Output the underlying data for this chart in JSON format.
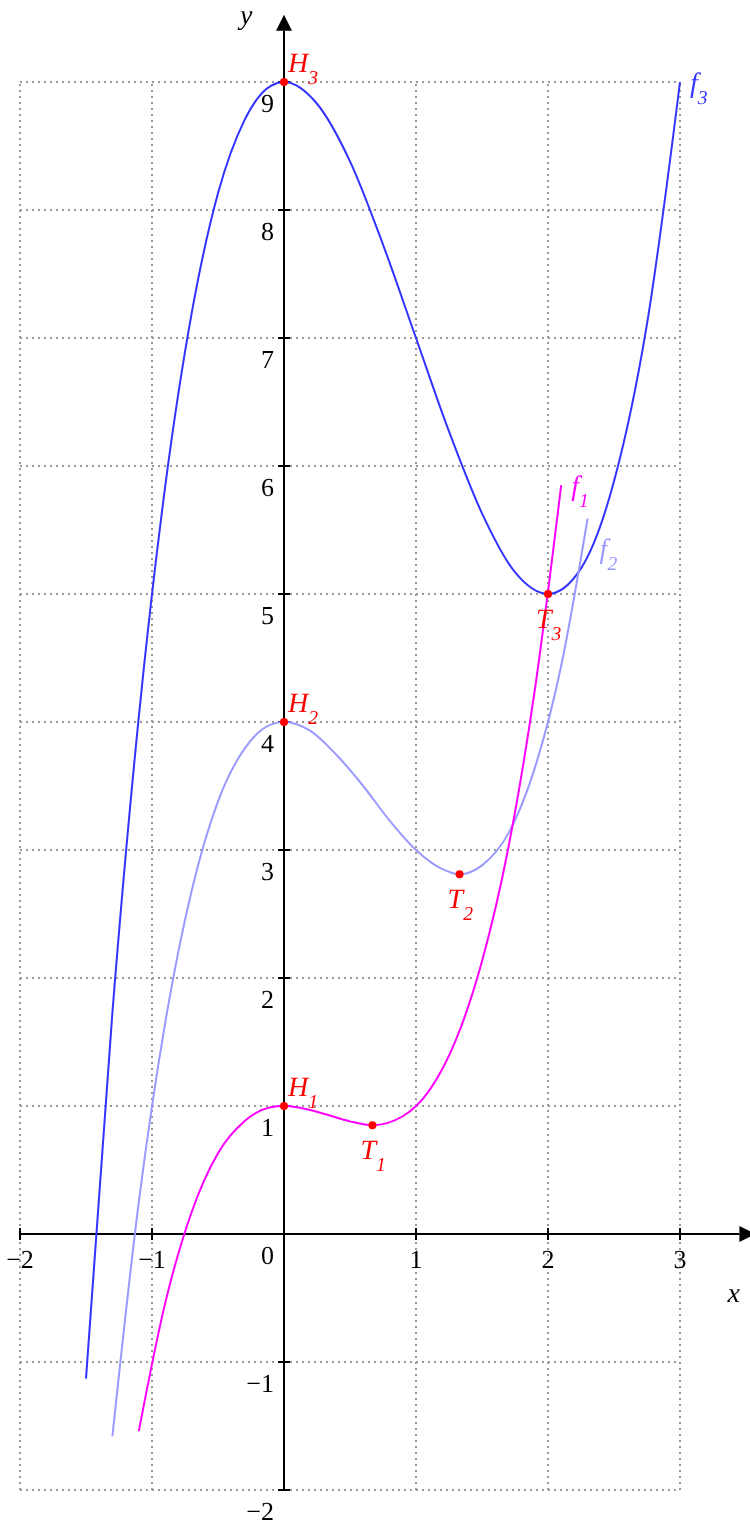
{
  "chart_data": {
    "type": "line",
    "xlabel": "x",
    "ylabel": "y",
    "xlim": [
      -2,
      3.45
    ],
    "ylim": [
      -2,
      9.4
    ],
    "xticks": [
      {
        "value": -2,
        "label": "−2"
      },
      {
        "value": -1,
        "label": "−1"
      },
      1,
      2,
      3
    ],
    "yticks": [
      {
        "value": -2,
        "label": "−2"
      },
      {
        "value": -1,
        "label": "−1"
      },
      {
        "value": 0,
        "label": "0"
      },
      1,
      2,
      3,
      4,
      5,
      6,
      7,
      8,
      9
    ],
    "grid": true,
    "line_style": "solid",
    "marker": "none",
    "series": [
      {
        "name": "f$_{3}$",
        "color": "#3333ff",
        "x": [
          -1.5,
          -1.3,
          -1.1,
          -0.9,
          -0.7,
          -0.5,
          -0.3,
          -0.1,
          0,
          0.25,
          0.5,
          0.75,
          1,
          1.25,
          1.5,
          1.75,
          2,
          2.25,
          2.5,
          2.75,
          3
        ],
        "values": [
          -1.13,
          1.73,
          4.04,
          5.84,
          7.19,
          8.13,
          8.7,
          8.97,
          9,
          8.83,
          8.38,
          7.73,
          7,
          6.27,
          5.63,
          5.17,
          5,
          5.2,
          5.88,
          7.11,
          9
        ]
      },
      {
        "name": "f$_{2}$",
        "color": "#9999ff",
        "x": [
          -1.3,
          -1.1,
          -0.9,
          -0.7,
          -0.5,
          -0.3,
          -0.1,
          0,
          0.2,
          0.4,
          0.6,
          0.8,
          1,
          1.2,
          1.33,
          1.5,
          1.7,
          1.9,
          2.1,
          2.3
        ],
        "values": [
          -1.58,
          0.25,
          1.65,
          2.68,
          3.38,
          3.79,
          3.98,
          4,
          3.93,
          3.74,
          3.5,
          3.23,
          3,
          2.85,
          2.81,
          2.88,
          3.13,
          3.64,
          4.44,
          5.59
        ]
      },
      {
        "name": "f$_{1}$",
        "color": "#ff00ff",
        "x": [
          -1.1,
          -0.9,
          -0.7,
          -0.5,
          -0.3,
          -0.1,
          0,
          0.1,
          0.3,
          0.5,
          0.67,
          0.9,
          1.1,
          1.3,
          1.5,
          1.7,
          1.9,
          2.1
        ],
        "values": [
          -1.54,
          -0.54,
          0.17,
          0.63,
          0.88,
          0.99,
          1,
          0.99,
          0.94,
          0.88,
          0.85,
          0.92,
          1.12,
          1.51,
          2.13,
          3.02,
          4.25,
          5.85
        ]
      },
      {
        "type": "scatter",
        "marker": "circle",
        "color": "#ff0000",
        "x": [
          0,
          2,
          0,
          1.33,
          0,
          0.67
        ],
        "values": [
          9,
          5,
          4,
          2.81,
          1,
          0.85
        ]
      }
    ],
    "annotations": [
      {
        "text": "H$_{3}$",
        "x": 0,
        "y": 9
      },
      {
        "text": "T$_{3}$",
        "x": 2,
        "y": 5
      },
      {
        "text": "H$_{2}$",
        "x": 0,
        "y": 4
      },
      {
        "text": "T$_{2}$",
        "x": 1.33,
        "y": 2.81
      },
      {
        "text": "H$_{1}$",
        "x": 0,
        "y": 1
      },
      {
        "text": "T$_{1}$",
        "x": 0.67,
        "y": 0.85
      }
    ]
  }
}
